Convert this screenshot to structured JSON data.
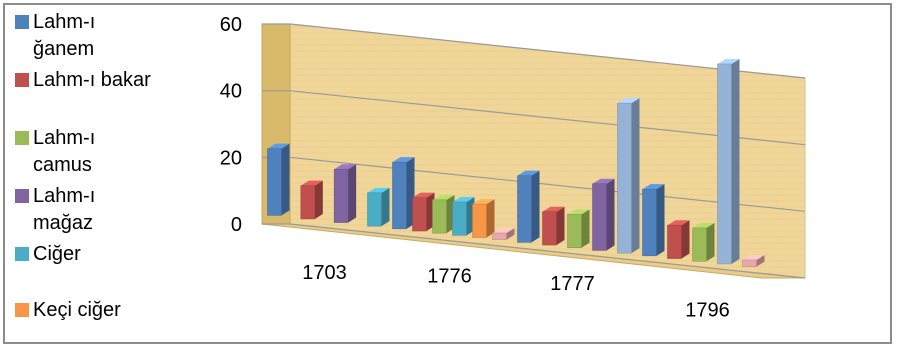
{
  "chart_data": {
    "type": "bar",
    "title": "",
    "xlabel": "",
    "ylabel": "",
    "ylim": [
      0,
      60
    ],
    "yticks": [
      "0",
      "20",
      "40",
      "60"
    ],
    "grid": true,
    "legend_position": "left",
    "categories": [
      "1703",
      "1776",
      "1777",
      "1796"
    ],
    "series": [
      {
        "name": "Lahm-ı ğanem",
        "color": "#4f81bd",
        "values": [
          20,
          20,
          20,
          20
        ]
      },
      {
        "name": "Lahm-ı bakar",
        "color": "#c0504d",
        "values": [
          10,
          10,
          10,
          10
        ]
      },
      {
        "name": "Lahm-ı camus",
        "color": "#9bbb59",
        "values": [
          0,
          10,
          10,
          10
        ]
      },
      {
        "name": "Lahm-ı mağaz",
        "color": "#8064a2",
        "values": [
          16,
          0,
          20,
          0
        ]
      },
      {
        "name": "Ciğer",
        "color": "#4bacc6",
        "values": [
          10,
          10,
          0,
          0
        ]
      },
      {
        "name": "Keçi ciğer",
        "color": "#f79646",
        "values": [
          0,
          10,
          0,
          0
        ]
      },
      {
        "name": "",
        "color": "#95b3d7",
        "values": [
          0,
          0,
          45,
          60
        ]
      },
      {
        "name": "",
        "color": "#e6a8a8",
        "values": [
          0,
          2,
          0,
          2
        ]
      }
    ]
  }
}
